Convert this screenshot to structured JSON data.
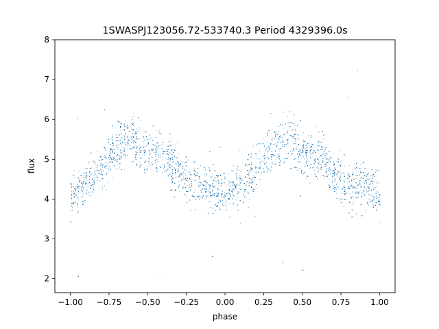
{
  "chart_data": {
    "type": "scatter",
    "title": "1SWASPJ123056.72-533740.3 Period 4329396.0s",
    "xlabel": "phase",
    "ylabel": "flux",
    "xlim": [
      -1.1,
      1.1
    ],
    "ylim": [
      1.65,
      8.0
    ],
    "xticks": [
      -1.0,
      -0.75,
      -0.5,
      -0.25,
      0.0,
      0.25,
      0.5,
      0.75,
      1.0
    ],
    "xtick_labels": [
      "−1.00",
      "−0.75",
      "−0.50",
      "−0.25",
      "0.00",
      "0.25",
      "0.50",
      "0.75",
      "1.00"
    ],
    "yticks": [
      2,
      3,
      4,
      5,
      6,
      7,
      8
    ],
    "ytick_labels": [
      "2",
      "3",
      "4",
      "5",
      "6",
      "7",
      "8"
    ],
    "grid": false,
    "marker_color": "#1f77b4",
    "series": [
      {
        "phase": [
          -1.0,
          -0.9,
          -0.8,
          -0.7,
          -0.6,
          -0.5,
          -0.4,
          -0.3,
          -0.2,
          -0.1,
          0.0,
          0.1,
          0.2,
          0.3,
          0.4,
          0.5,
          0.6,
          0.7,
          0.8,
          0.9,
          1.0
        ],
        "flux": [
          4.1,
          4.4,
          4.8,
          5.3,
          5.55,
          5.2,
          5.1,
          4.7,
          4.3,
          4.35,
          4.1,
          4.4,
          4.8,
          5.3,
          5.55,
          5.2,
          5.1,
          4.7,
          4.3,
          4.35,
          4.1
        ],
        "scatter": [
          0.35,
          0.4,
          0.4,
          0.4,
          0.45,
          0.4,
          0.4,
          0.4,
          0.4,
          0.4,
          0.35,
          0.4,
          0.4,
          0.4,
          0.45,
          0.4,
          0.4,
          0.4,
          0.4,
          0.4,
          0.35
        ]
      }
    ]
  }
}
